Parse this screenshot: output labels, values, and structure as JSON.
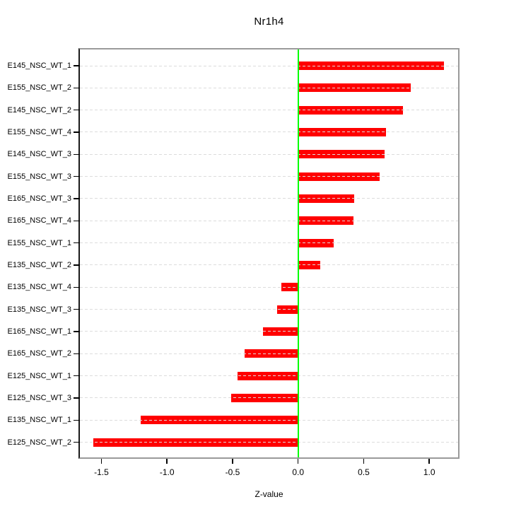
{
  "title": "Nr1h4",
  "x_axis_title": "Z-value",
  "colors": {
    "bar": "#ff0000",
    "zero_line": "#00ff00",
    "grid": "#dcdcdc",
    "frame": "#9a9a9a",
    "axis_line": "#1a1a1a",
    "text": "#000000",
    "background": "#ffffff"
  },
  "chart_data": {
    "type": "bar",
    "orientation": "horizontal",
    "title": "Nr1h4",
    "xlabel": "Z-value",
    "ylabel": "",
    "categories": [
      "E145_NSC_WT_1",
      "E155_NSC_WT_2",
      "E145_NSC_WT_2",
      "E155_NSC_WT_4",
      "E145_NSC_WT_3",
      "E155_NSC_WT_3",
      "E165_NSC_WT_3",
      "E165_NSC_WT_4",
      "E155_NSC_WT_1",
      "E135_NSC_WT_2",
      "E135_NSC_WT_4",
      "E135_NSC_WT_3",
      "E165_NSC_WT_1",
      "E165_NSC_WT_2",
      "E125_NSC_WT_1",
      "E125_NSC_WT_3",
      "E135_NSC_WT_1",
      "E125_NSC_WT_2"
    ],
    "values": [
      1.11,
      0.86,
      0.8,
      0.67,
      0.66,
      0.62,
      0.43,
      0.42,
      0.27,
      0.17,
      -0.13,
      -0.16,
      -0.27,
      -0.41,
      -0.46,
      -0.51,
      -1.2,
      -1.56
    ],
    "xlim": [
      -1.664,
      1.22
    ],
    "xtick_labels": [
      "-1.5",
      "-1.0",
      "-0.5",
      "0.0",
      "0.5",
      "1.0"
    ],
    "grid": "horizontal-dashed",
    "reference_line_x": 0,
    "legend": "none"
  }
}
